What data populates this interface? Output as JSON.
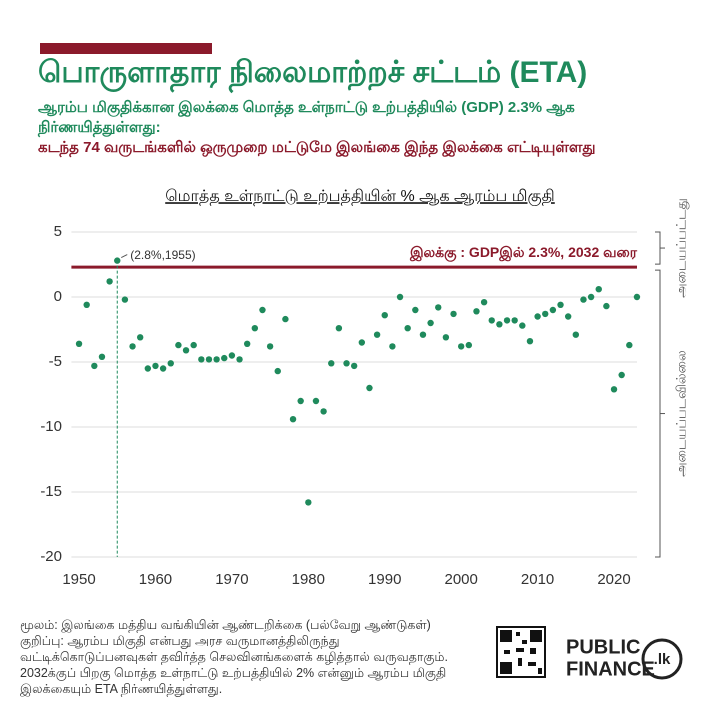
{
  "header": {
    "title": "பொருளாதார நிலைமாற்றச் சட்டம் (ETA)",
    "subtitle": "ஆரம்ப மிகுதிக்கான இலக்கை மொத்த உள்நாட்டு உற்பத்தியில் (GDP) 2.3% ஆக நிர்ணயித்துள்ளது:",
    "highlight": "கடந்த 74 வருடங்களில் ஒருமுறை மட்டுமே இலங்கை இந்த இலக்கை எட்டியுள்ளது"
  },
  "chart_data": {
    "type": "scatter",
    "title": "மொத்த உள்நாட்டு உற்பத்தியின் % ஆக  ஆரம்ப மிகுதி",
    "x": [
      1950,
      1951,
      1952,
      1953,
      1954,
      1955,
      1956,
      1957,
      1958,
      1959,
      1960,
      1961,
      1962,
      1963,
      1964,
      1965,
      1966,
      1967,
      1968,
      1969,
      1970,
      1971,
      1972,
      1973,
      1974,
      1975,
      1976,
      1977,
      1978,
      1979,
      1980,
      1981,
      1982,
      1983,
      1984,
      1985,
      1986,
      1987,
      1988,
      1989,
      1990,
      1991,
      1992,
      1993,
      1994,
      1995,
      1996,
      1997,
      1998,
      1999,
      2000,
      2001,
      2002,
      2003,
      2004,
      2005,
      2006,
      2007,
      2008,
      2009,
      2010,
      2011,
      2012,
      2013,
      2014,
      2015,
      2016,
      2017,
      2018,
      2019,
      2020,
      2021,
      2022,
      2023
    ],
    "values": [
      -3.6,
      -0.6,
      -5.3,
      -4.6,
      1.2,
      2.8,
      -0.2,
      -3.8,
      -3.1,
      -5.5,
      -5.3,
      -5.5,
      -5.1,
      -3.7,
      -4.1,
      -3.7,
      -4.8,
      -4.8,
      -4.8,
      -4.7,
      -4.5,
      -4.8,
      -3.6,
      -2.4,
      -1.0,
      -3.8,
      -5.7,
      -1.7,
      -9.4,
      -8.0,
      -15.8,
      -8.0,
      -8.8,
      -5.1,
      -2.4,
      -5.1,
      -5.3,
      -3.5,
      -7.0,
      -2.9,
      -1.4,
      -3.8,
      0.0,
      -2.4,
      -1.0,
      -2.9,
      -2.0,
      -0.8,
      -3.1,
      -1.3,
      -3.8,
      -3.7,
      -1.1,
      -0.4,
      -1.8,
      -2.1,
      -1.8,
      -1.8,
      -2.2,
      -3.4,
      -1.5,
      -1.3,
      -1.0,
      -0.6,
      -1.5,
      -2.9,
      -0.2,
      0.0,
      0.6,
      -0.7,
      -7.1,
      -6.0,
      -3.7,
      0.0
    ],
    "color": "#1f8a5c",
    "xlim": [
      1949,
      2024
    ],
    "xticks": [
      1950,
      1960,
      1970,
      1980,
      1990,
      2000,
      2010,
      2020
    ],
    "ylim": [
      -20,
      5
    ],
    "yticks": [
      -20,
      -15,
      -10,
      -5,
      0,
      5
    ],
    "grid": true,
    "target": {
      "value": 2.3,
      "label": "இலக்கு : GDPஇல் 2.3%, 2032 வரை",
      "color": "#8b1a2b"
    },
    "annotation": {
      "x": 1955,
      "text": "(2.8%,1955)"
    },
    "above_label": "அடையப்பட்டது",
    "below_label": "அடையப்படவில்லை"
  },
  "footer": {
    "source": "மூலம்: இலங்கை மத்திய வங்கியின் ஆண்டறிக்கை (பல்வேறு ஆண்டுகள்)",
    "note": "குறிப்பு: ஆரம்ப மிகுதி என்பது அரச வருமானத்திலிருந்து வட்டிக்கொடுப்பனவுகள் தவிர்த்த செலவினங்களைக் கழித்தால் வருவதாகும். 2032க்குப் பிறகு மொத்த உள்நாட்டு உற்பத்தியில் 2% என்னும் ஆரம்ப மிகுதி இலக்கையும் ETA நிர்ணயித்துள்ளது.",
    "logo": [
      "PUBLIC",
      "FINANCE",
      ".lk"
    ]
  }
}
